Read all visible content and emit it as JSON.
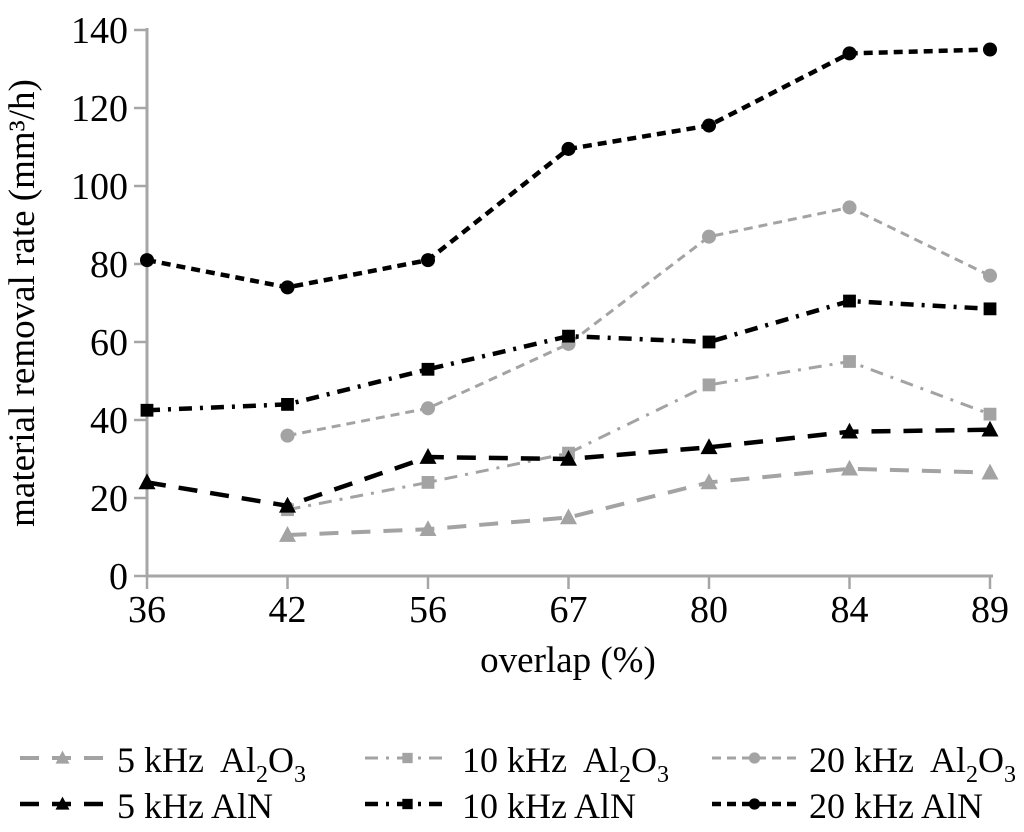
{
  "page": {
    "background": "#ffffff"
  },
  "chart_data": {
    "type": "line",
    "title": "",
    "xlabel": "overlap (%)",
    "ylabel": "material removal rate (mm³/h)",
    "x_type": "categorical",
    "categories": [
      "36",
      "42",
      "56",
      "67",
      "80",
      "84",
      "89"
    ],
    "yticks": [
      0,
      20,
      40,
      60,
      80,
      100,
      120,
      140
    ],
    "ylim": [
      0,
      140
    ],
    "grid": false,
    "legend_position": "bottom",
    "axis_color": "#a6a6a6",
    "text_color": "#000000",
    "series": [
      {
        "name": "5 kHz  Al₂O₃",
        "color": "#a3a3a3",
        "marker": "triangle",
        "dash": "long-dash",
        "values": [
          null,
          10.5,
          12,
          15,
          24,
          27.5,
          26.5
        ]
      },
      {
        "name": "10 kHz  Al₂O₃",
        "color": "#a3a3a3",
        "marker": "square",
        "dash": "dash-dot",
        "values": [
          null,
          17,
          24,
          31.5,
          49,
          55,
          41.5
        ]
      },
      {
        "name": "20 kHz  Al₂O₃",
        "color": "#a3a3a3",
        "marker": "circle",
        "dash": "short-dash",
        "values": [
          null,
          36,
          43,
          59.5,
          87,
          94.5,
          77
        ]
      },
      {
        "name": "5 kHz AlN",
        "color": "#000000",
        "marker": "triangle",
        "dash": "long-dash",
        "values": [
          24,
          18,
          30.5,
          30,
          33,
          37,
          37.5
        ]
      },
      {
        "name": "10 kHz AlN",
        "color": "#000000",
        "marker": "square",
        "dash": "dash-dot",
        "values": [
          42.5,
          44,
          53,
          61.5,
          60,
          70.5,
          68.5
        ]
      },
      {
        "name": "20 kHz AlN",
        "color": "#000000",
        "marker": "circle",
        "dash": "short-dash",
        "values": [
          81,
          74,
          81,
          109.5,
          115.5,
          134,
          135
        ]
      }
    ]
  }
}
